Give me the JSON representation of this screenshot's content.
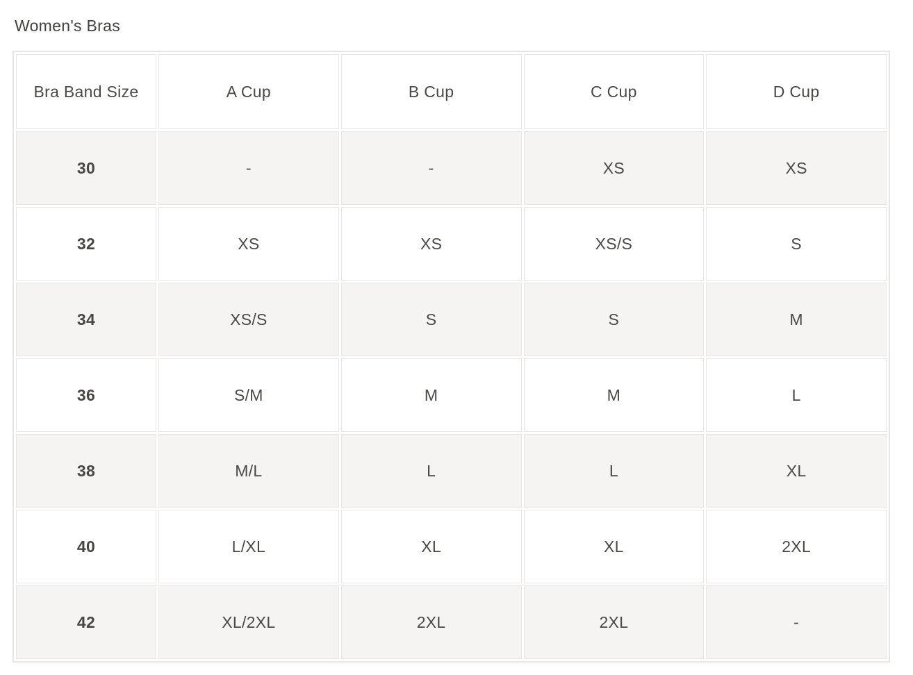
{
  "page": {
    "title": "Women's Bras"
  },
  "size_chart": {
    "columns": [
      "Bra Band Size",
      "A Cup",
      "B Cup",
      "C Cup",
      "D Cup"
    ],
    "rows": [
      [
        "30",
        "-",
        "-",
        "XS",
        "XS"
      ],
      [
        "32",
        "XS",
        "XS",
        "XS/S",
        "S"
      ],
      [
        "34",
        "XS/S",
        "S",
        "S",
        "M"
      ],
      [
        "36",
        "S/M",
        "M",
        "M",
        "L"
      ],
      [
        "38",
        "M/L",
        "L",
        "L",
        "XL"
      ],
      [
        "40",
        "L/XL",
        "XL",
        "XL",
        "2XL"
      ],
      [
        "42",
        "XL/2XL",
        "2XL",
        "2XL",
        "-"
      ]
    ]
  },
  "colors": {
    "row_alt_bg": "#f5f4f2",
    "row_bg": "#ffffff",
    "border": "#e7e6e4",
    "gridline": "#e8e7e5",
    "text": "#4a4946",
    "title_text": "#434240"
  }
}
